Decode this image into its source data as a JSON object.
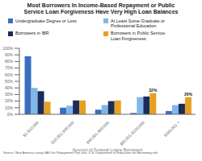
{
  "chart_data": {
    "type": "bar",
    "title": "Most Borrowers In Income-Based Repayment or Public\nService Loan Forgiveness Have Very High Loan Balances",
    "categories": [
      "$1-$10,000",
      "$10,001-$40,000",
      "$40,001-$60,000",
      "$60,001-$100,000",
      "$100,001 +"
    ],
    "series": [
      {
        "name": "Undergraduate Degree or Less",
        "color": "#3a6fbe",
        "values": [
          88,
          10,
          7,
          2,
          5
        ]
      },
      {
        "name": "At Least Some Graduate or\nProfessional Education",
        "color": "#7eb8e8",
        "values": [
          40,
          13,
          14,
          26,
          14
        ]
      },
      {
        "name": "Borrowers in IBR",
        "color": "#1a2d5a",
        "values": [
          35,
          21,
          20,
          27,
          16
        ]
      },
      {
        "name": "Borrowers in Public Service\nLoan Forgiveness",
        "color": "#e8a020",
        "values": [
          19,
          21,
          21,
          32,
          26
        ]
      }
    ],
    "xlabel": "Amount of Federal Loans Borrowed",
    "ylim": [
      0,
      100
    ],
    "yticks": [
      {
        "value": 0,
        "label": "0%"
      },
      {
        "value": 10,
        "label": "10%"
      },
      {
        "value": 20,
        "label": "20%"
      },
      {
        "value": 30,
        "label": "30%"
      },
      {
        "value": 40,
        "label": "40%"
      },
      {
        "value": 50,
        "label": "50%"
      },
      {
        "value": 60,
        "label": "60%"
      },
      {
        "value": 70,
        "label": "70%"
      },
      {
        "value": 80,
        "label": "80%"
      },
      {
        "value": 90,
        "label": "90%"
      },
      {
        "value": 100,
        "label": "100%"
      }
    ],
    "grid": false,
    "legend": "top",
    "annotations": [
      {
        "text": "32%",
        "category": "$60,001-$100,000",
        "series": "Borrowers in Public Service\nLoan Forgiveness"
      },
      {
        "text": "26%",
        "category": "$100,001 +",
        "series": "Borrowers in Public Service\nLoan Forgiveness"
      }
    ],
    "source": "Source: New America using GAO for Repayment Plan info, U.S. Department of Education for Borrowing info"
  }
}
